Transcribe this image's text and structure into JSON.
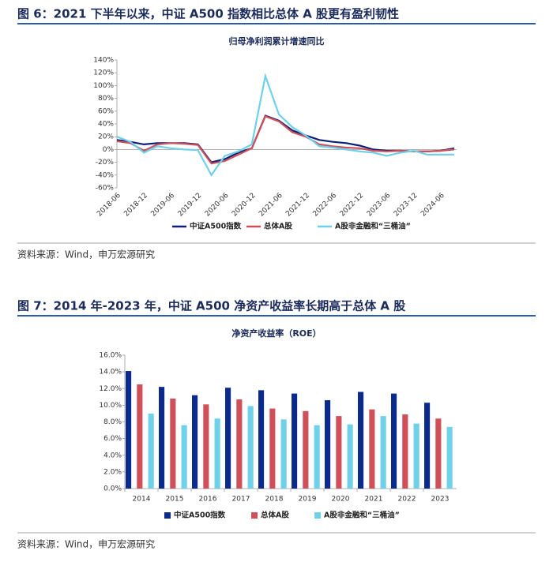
{
  "figures": [
    {
      "caption": "图 6：2021 下半年以来，中证 A500 指数相比总体 A 股更有盈利韧性",
      "source": "资料来源：Wind，申万宏源研究"
    },
    {
      "caption": "图 7：2014 年-2023 年，中证 A500 净资产收益率长期高于总体 A 股",
      "source": "资料来源：Wind，申万宏源研究"
    }
  ],
  "chart_data": [
    {
      "type": "line",
      "title": "归母净利润累计增速同比",
      "categories": [
        "2018-06",
        null,
        "2018-12",
        null,
        "2019-06",
        null,
        "2019-12",
        null,
        "2020-06",
        null,
        "2020-12",
        null,
        "2021-06",
        null,
        "2021-12",
        null,
        "2022-06",
        null,
        "2022-12",
        null,
        "2023-06",
        null,
        "2023-12",
        null,
        "2024-06",
        null
      ],
      "series": [
        {
          "name": "中证A500指数",
          "color": "#0b1f7a",
          "values": [
            15,
            12,
            8,
            10,
            10,
            10,
            8,
            -20,
            -15,
            -5,
            2,
            53,
            45,
            30,
            22,
            15,
            12,
            10,
            6,
            0,
            -2,
            -2,
            -3,
            -3,
            -2,
            2
          ]
        },
        {
          "name": "总体A股",
          "color": "#d0505a",
          "values": [
            13,
            10,
            -2,
            8,
            10,
            9,
            7,
            -22,
            -18,
            -8,
            2,
            52,
            44,
            27,
            20,
            8,
            5,
            3,
            2,
            -2,
            -3,
            -2,
            -3,
            -3,
            -2,
            0
          ]
        },
        {
          "name": "A股非金融和“三桶油”",
          "color": "#6fd0ea",
          "values": [
            20,
            12,
            -5,
            5,
            2,
            0,
            -1,
            -40,
            -10,
            -3,
            8,
            115,
            55,
            35,
            22,
            5,
            3,
            0,
            -3,
            -5,
            -10,
            -5,
            -2,
            -8,
            -8,
            -8
          ]
        }
      ],
      "ylim": [
        -60,
        140
      ],
      "yticks": [
        {
          "value": -60,
          "label": "-60%"
        },
        {
          "value": -40,
          "label": "-40%"
        },
        {
          "value": -20,
          "label": "-20%"
        },
        {
          "value": 0,
          "label": "0%"
        },
        {
          "value": 20,
          "label": "20%"
        },
        {
          "value": 40,
          "label": "40%"
        },
        {
          "value": 60,
          "label": "60%"
        },
        {
          "value": 80,
          "label": "80%"
        },
        {
          "value": 100,
          "label": "100%"
        },
        {
          "value": 120,
          "label": "120%"
        },
        {
          "value": 140,
          "label": "140%"
        }
      ],
      "grid": false
    },
    {
      "type": "bar",
      "title": "净资产收益率（ROE）",
      "categories": [
        "2014",
        "2015",
        "2016",
        "2017",
        "2018",
        "2019",
        "2020",
        "2021",
        "2022",
        "2023"
      ],
      "series": [
        {
          "name": "中证A500指数",
          "color": "#0b2a8c",
          "values": [
            14.1,
            12.2,
            11.2,
            12.1,
            11.8,
            11.4,
            10.6,
            11.6,
            11.4,
            10.3
          ]
        },
        {
          "name": "总体A股",
          "color": "#d0505a",
          "values": [
            12.5,
            10.8,
            10.1,
            10.7,
            9.6,
            9.3,
            8.7,
            9.5,
            8.9,
            8.4
          ]
        },
        {
          "name": "A股非金融和“三桶油”",
          "color": "#6fd0ea",
          "values": [
            9.0,
            7.6,
            8.4,
            9.9,
            8.3,
            7.6,
            7.7,
            8.7,
            7.8,
            7.4
          ]
        }
      ],
      "ylim": [
        0,
        16
      ],
      "yticks": [
        {
          "value": 0,
          "label": "0.0%"
        },
        {
          "value": 2,
          "label": "2.0%"
        },
        {
          "value": 4,
          "label": "4.0%"
        },
        {
          "value": 6,
          "label": "6.0%"
        },
        {
          "value": 8,
          "label": "8.0%"
        },
        {
          "value": 10,
          "label": "10.0%"
        },
        {
          "value": 12,
          "label": "12.0%"
        },
        {
          "value": 14,
          "label": "14.0%"
        },
        {
          "value": 16,
          "label": "16.0%"
        }
      ],
      "grid": false
    }
  ]
}
